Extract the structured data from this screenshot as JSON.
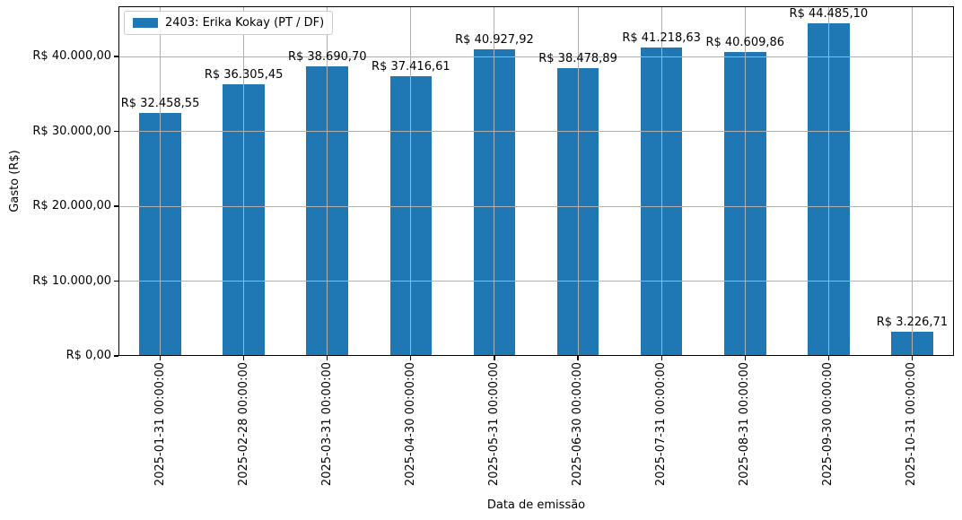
{
  "chart_data": {
    "type": "bar",
    "title": "",
    "xlabel": "Data de emissão",
    "ylabel": "Gasto (R$)",
    "grid": true,
    "legend_position": "upper left",
    "categories": [
      "2025-01-31 00:00:00",
      "2025-02-28 00:00:00",
      "2025-03-31 00:00:00",
      "2025-04-30 00:00:00",
      "2025-05-31 00:00:00",
      "2025-06-30 00:00:00",
      "2025-07-31 00:00:00",
      "2025-08-31 00:00:00",
      "2025-09-30 00:00:00",
      "2025-10-31 00:00:00"
    ],
    "series": [
      {
        "name": "2403: Erika Kokay (PT / DF)",
        "color": "#1f77b4",
        "values": [
          32458.55,
          36305.45,
          38690.7,
          37416.61,
          40927.92,
          38478.89,
          41218.63,
          40609.86,
          44485.1,
          3226.71
        ],
        "value_labels": [
          "R$ 32.458,55",
          "R$ 36.305,45",
          "R$ 38.690,70",
          "R$ 37.416,61",
          "R$ 40.927,92",
          "R$ 38.478,89",
          "R$ 41.218,63",
          "R$ 40.609,86",
          "R$ 44.485,10",
          "R$ 3.226,71"
        ]
      }
    ],
    "ylim": [
      0,
      46709
    ],
    "yticks": {
      "values": [
        0,
        10000,
        20000,
        30000,
        40000
      ],
      "labels": [
        "R$ 0,00",
        "R$ 10.000,00",
        "R$ 20.000,00",
        "R$ 30.000,00",
        "R$ 40.000,00"
      ]
    },
    "colors": {
      "bar": "#1f77b4",
      "grid": "#b0b0b0",
      "spine": "#000000",
      "background": "#ffffff"
    }
  }
}
